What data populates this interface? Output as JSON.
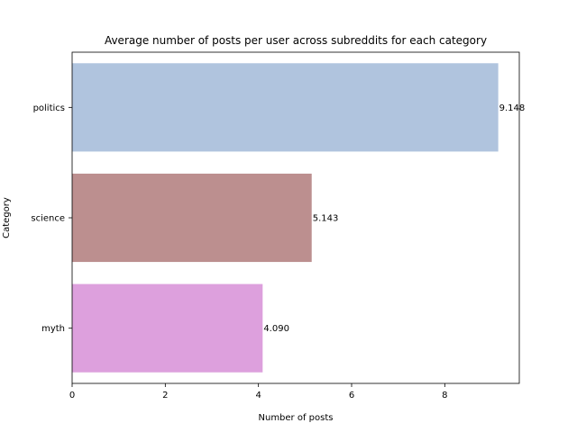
{
  "chart_data": {
    "type": "bar",
    "orientation": "horizontal",
    "title": "Average number of posts per user across subreddits for each category",
    "xlabel": "Number of posts",
    "ylabel": "Category",
    "categories": [
      "politics",
      "science",
      "myth"
    ],
    "values": [
      9.148,
      5.143,
      4.09
    ],
    "value_labels": [
      "9.148",
      "5.143",
      "4.090"
    ],
    "colors": [
      "#b0c4de",
      "#bc8f8f",
      "#dda0dd"
    ],
    "xlim": [
      0,
      9.6
    ],
    "xticks": [
      0,
      2,
      4,
      6,
      8
    ],
    "grid": false,
    "legend": false
  }
}
